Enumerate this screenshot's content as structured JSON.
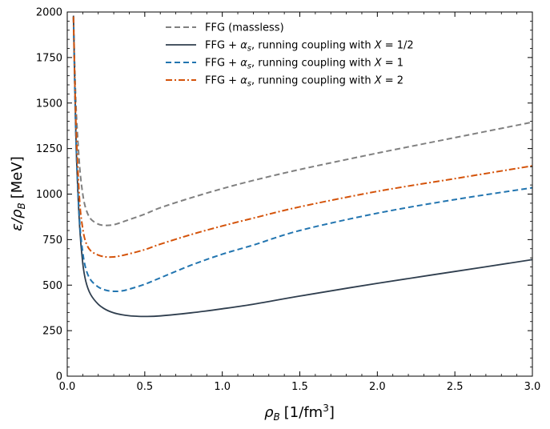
{
  "chart_data": {
    "type": "line",
    "xlabel_main": "ρ",
    "xlabel_sub": "B",
    "xlabel_unit": "[1/fm",
    "xlabel_sup": "3",
    "xlabel_close": "]",
    "ylabel_main": "ε/ρ",
    "ylabel_sub": "B",
    "ylabel_unit": "[MeV]",
    "xlim": [
      0.0,
      3.0
    ],
    "ylim": [
      0,
      2000
    ],
    "xticks": [
      "0.0",
      "0.5",
      "1.0",
      "1.5",
      "2.0",
      "2.5",
      "3.0"
    ],
    "yticks": [
      "0",
      "250",
      "500",
      "750",
      "1000",
      "1250",
      "1500",
      "1750",
      "2000"
    ],
    "grid": false,
    "legend_position": "top-center",
    "series": [
      {
        "name": "FFG (massless)",
        "legend_parts": {
          "text": "FFG (massless)"
        },
        "color": "#808080",
        "style": "dashed",
        "x": [
          0.04,
          0.05,
          0.06,
          0.08,
          0.1,
          0.12,
          0.15,
          0.2,
          0.25,
          0.3,
          0.35,
          0.4,
          0.5,
          0.6,
          0.8,
          1.0,
          1.2,
          1.5,
          2.0,
          2.5,
          3.0
        ],
        "y": [
          1970,
          1650,
          1420,
          1150,
          1000,
          920,
          865,
          835,
          828,
          832,
          845,
          860,
          890,
          925,
          980,
          1030,
          1075,
          1135,
          1225,
          1310,
          1395
        ]
      },
      {
        "name": "FFG + αs, running coupling with X = 1/2",
        "legend_parts": {
          "pre": "FFG + ",
          "sym": "α",
          "sub": "s",
          "mid": ", running coupling with ",
          "var": "X",
          "eq": " = ",
          "val": "1/2"
        },
        "color": "#2f3e4e",
        "style": "solid",
        "x": [
          0.04,
          0.05,
          0.06,
          0.08,
          0.1,
          0.12,
          0.15,
          0.2,
          0.25,
          0.3,
          0.35,
          0.4,
          0.45,
          0.5,
          0.6,
          0.8,
          1.0,
          1.2,
          1.5,
          2.0,
          2.5,
          3.0
        ],
        "y": [
          1980,
          1550,
          1200,
          820,
          620,
          520,
          450,
          395,
          365,
          348,
          338,
          332,
          329,
          328,
          331,
          348,
          370,
          395,
          440,
          510,
          575,
          640
        ]
      },
      {
        "name": "FFG + αs, running coupling with X = 1",
        "legend_parts": {
          "pre": "FFG + ",
          "sym": "α",
          "sub": "s",
          "mid": ", running coupling with ",
          "var": "X",
          "eq": " = ",
          "val": "1"
        },
        "color": "#2275b0",
        "style": "dashed",
        "x": [
          0.04,
          0.05,
          0.06,
          0.08,
          0.1,
          0.12,
          0.15,
          0.2,
          0.25,
          0.3,
          0.35,
          0.4,
          0.5,
          0.6,
          0.8,
          1.0,
          1.2,
          1.5,
          2.0,
          2.5,
          3.0
        ],
        "y": [
          1975,
          1520,
          1200,
          850,
          680,
          590,
          530,
          490,
          472,
          466,
          468,
          478,
          505,
          540,
          610,
          670,
          720,
          800,
          895,
          970,
          1035
        ]
      },
      {
        "name": "FFG + αs, running coupling with X = 2",
        "legend_parts": {
          "pre": "FFG + ",
          "sym": "α",
          "sub": "s",
          "mid": ", running coupling with ",
          "var": "X",
          "eq": " = ",
          "val": "2"
        },
        "color": "#d4530a",
        "style": "dashdot",
        "x": [
          0.04,
          0.05,
          0.06,
          0.08,
          0.1,
          0.12,
          0.15,
          0.2,
          0.25,
          0.3,
          0.35,
          0.4,
          0.5,
          0.6,
          0.8,
          1.0,
          1.2,
          1.5,
          2.0,
          2.5,
          3.0
        ],
        "y": [
          1975,
          1580,
          1300,
          960,
          810,
          735,
          690,
          665,
          655,
          655,
          662,
          672,
          695,
          725,
          778,
          825,
          868,
          930,
          1015,
          1085,
          1155
        ]
      }
    ]
  }
}
